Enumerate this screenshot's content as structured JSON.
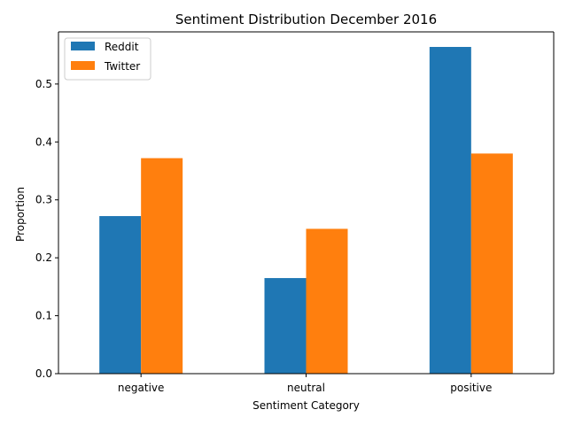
{
  "colors": {
    "reddit": "#1f77b4",
    "twitter": "#ff7f0e",
    "axis": "#000000",
    "background": "#ffffff",
    "legend_border": "#cccccc"
  },
  "chart_data": {
    "type": "bar",
    "title": "Sentiment Distribution December 2016",
    "xlabel": "Sentiment Category",
    "ylabel": "Proportion",
    "categories": [
      "negative",
      "neutral",
      "positive"
    ],
    "series": [
      {
        "name": "Reddit",
        "color": "#1f77b4",
        "values": [
          0.272,
          0.165,
          0.564
        ]
      },
      {
        "name": "Twitter",
        "color": "#ff7f0e",
        "values": [
          0.372,
          0.25,
          0.38
        ]
      }
    ],
    "ylim": [
      0,
      0.59
    ],
    "yticks": [
      0.0,
      0.1,
      0.2,
      0.3,
      0.4,
      0.5
    ],
    "ytick_labels": [
      "0.0",
      "0.1",
      "0.2",
      "0.3",
      "0.4",
      "0.5"
    ],
    "grid": false,
    "legend_position": "top-left"
  }
}
